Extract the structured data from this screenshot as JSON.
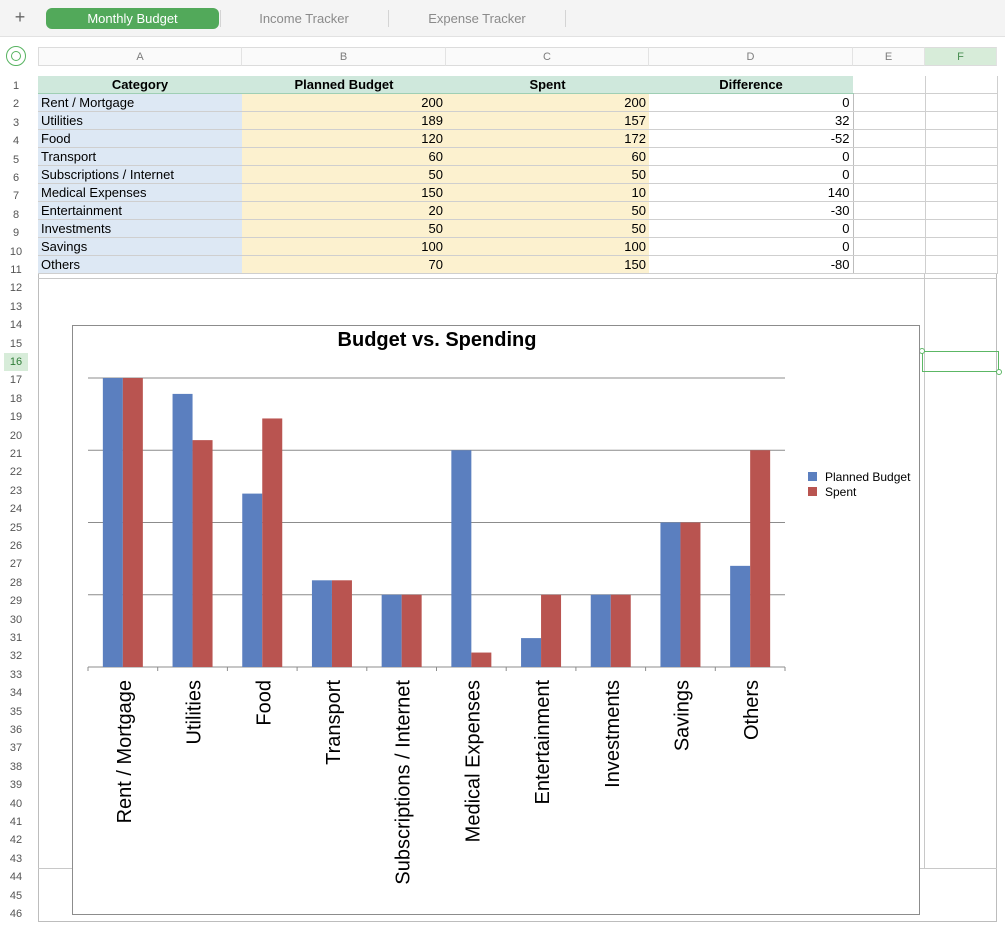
{
  "tabs": [
    {
      "label": "Monthly Budget",
      "active": true
    },
    {
      "label": "Income Tracker",
      "active": false
    },
    {
      "label": "Expense Tracker",
      "active": false
    }
  ],
  "add_tab_icon": "plus-icon",
  "columns": [
    "A",
    "B",
    "C",
    "D",
    "E",
    "F"
  ],
  "selected_column": "F",
  "selected_row": 16,
  "rows_count": 46,
  "table": {
    "headers": [
      "Category",
      "Planned Budget",
      "Spent",
      "Difference"
    ],
    "rows": [
      [
        "Rent / Mortgage",
        "200",
        "200",
        "0"
      ],
      [
        "Utilities",
        "189",
        "157",
        "32"
      ],
      [
        "Food",
        "120",
        "172",
        "-52"
      ],
      [
        "Transport",
        "60",
        "60",
        "0"
      ],
      [
        "Subscriptions / Internet",
        "50",
        "50",
        "0"
      ],
      [
        "Medical Expenses",
        "150",
        "10",
        "140"
      ],
      [
        "Entertainment",
        "20",
        "50",
        "-30"
      ],
      [
        "Investments",
        "50",
        "50",
        "0"
      ],
      [
        "Savings",
        "100",
        "100",
        "0"
      ],
      [
        "Others",
        "70",
        "150",
        "-80"
      ]
    ]
  },
  "colors": {
    "header_fill": "#cfe8dc",
    "category_fill": "#dde8f4",
    "number_fill": "#fcf1cf",
    "accent": "#52a95a",
    "planned": "#5b7fbf",
    "spent": "#b95450"
  },
  "chart_data": {
    "type": "bar",
    "title": "Budget vs. Spending",
    "categories": [
      "Rent / Mortgage",
      "Utilities",
      "Food",
      "Transport",
      "Subscriptions / Internet",
      "Medical Expenses",
      "Entertainment",
      "Investments",
      "Savings",
      "Others"
    ],
    "series": [
      {
        "name": "Planned Budget",
        "values": [
          200,
          189,
          120,
          60,
          50,
          150,
          20,
          50,
          100,
          70
        ]
      },
      {
        "name": "Spent",
        "values": [
          200,
          157,
          172,
          60,
          50,
          10,
          50,
          50,
          100,
          150
        ]
      }
    ],
    "ylim": [
      0,
      200
    ],
    "yticks_shown": false,
    "gridlines": [
      50,
      100,
      150,
      200
    ],
    "legend_position": "right"
  }
}
